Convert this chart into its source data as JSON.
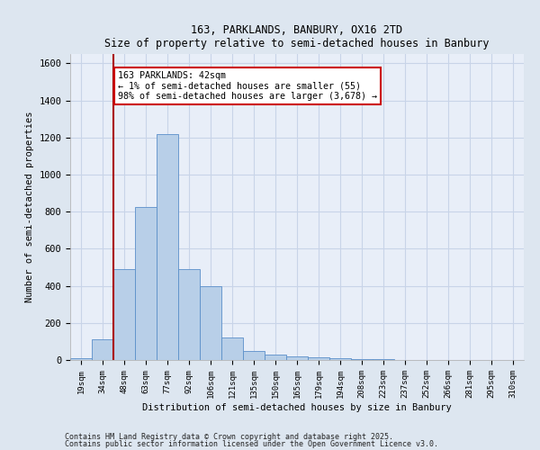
{
  "title1": "163, PARKLANDS, BANBURY, OX16 2TD",
  "title2": "Size of property relative to semi-detached houses in Banbury",
  "xlabel": "Distribution of semi-detached houses by size in Banbury",
  "ylabel": "Number of semi-detached properties",
  "categories": [
    "19sqm",
    "34sqm",
    "48sqm",
    "63sqm",
    "77sqm",
    "92sqm",
    "106sqm",
    "121sqm",
    "135sqm",
    "150sqm",
    "165sqm",
    "179sqm",
    "194sqm",
    "208sqm",
    "223sqm",
    "237sqm",
    "252sqm",
    "266sqm",
    "281sqm",
    "295sqm",
    "310sqm"
  ],
  "values": [
    10,
    110,
    490,
    825,
    1220,
    490,
    400,
    120,
    50,
    30,
    20,
    15,
    10,
    5,
    5,
    2,
    2,
    1,
    0,
    0,
    0
  ],
  "bar_color": "#b8cfe8",
  "bar_edge_color": "#5b8fc9",
  "vline_x": 1.5,
  "vline_color": "#aa0000",
  "annotation_text": "163 PARKLANDS: 42sqm\n← 1% of semi-detached houses are smaller (55)\n98% of semi-detached houses are larger (3,678) →",
  "annotation_box_color": "#cc0000",
  "ylim": [
    0,
    1650
  ],
  "yticks": [
    0,
    200,
    400,
    600,
    800,
    1000,
    1200,
    1400,
    1600
  ],
  "footnote1": "Contains HM Land Registry data © Crown copyright and database right 2025.",
  "footnote2": "Contains public sector information licensed under the Open Government Licence v3.0.",
  "bg_color": "#dde6f0",
  "plot_bg_color": "#e8eef8",
  "grid_color": "#c8d4e8"
}
